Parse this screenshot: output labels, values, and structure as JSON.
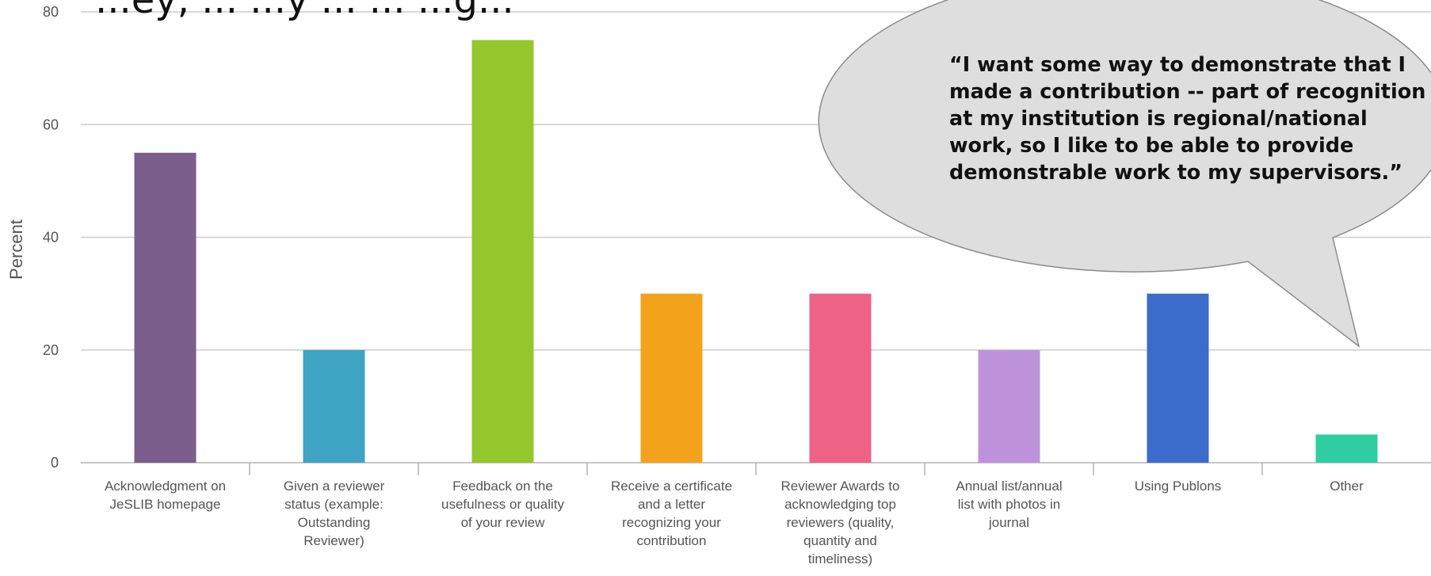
{
  "chart_data": {
    "type": "bar",
    "title": "...ey, ... ...y ... ... ...g...",
    "ylabel": "Percent",
    "xlabel": "",
    "ylim": [
      0,
      80
    ],
    "yticks": [
      0,
      20,
      40,
      60,
      80
    ],
    "grid": true,
    "categories": [
      [
        "Acknowledgment on",
        "JeSLIB homepage"
      ],
      [
        "Given a reviewer",
        "status (example:",
        "Outstanding",
        "Reviewer)"
      ],
      [
        "Feedback on the",
        "usefulness or quality",
        "of your review"
      ],
      [
        "Receive a certificate",
        "and a letter",
        "recognizing your",
        "contribution"
      ],
      [
        "Reviewer Awards to",
        "acknowledging top",
        "reviewers (quality,",
        "quantity and",
        "timeliness)"
      ],
      [
        "Annual list/annual",
        "list with photos in",
        "journal"
      ],
      [
        "Using Publons"
      ],
      [
        "Other"
      ]
    ],
    "values": [
      55,
      20,
      75,
      30,
      30,
      20,
      30,
      5
    ],
    "colors": [
      "#7b5e8b",
      "#3fa3c4",
      "#94c72b",
      "#f2a31b",
      "#ee6285",
      "#be92db",
      "#3d6bcc",
      "#2ecea0"
    ]
  },
  "quote": {
    "lines": [
      "“I want some way to demonstrate that I",
      "made a contribution -- part of recognition",
      "at my institution is regional/national",
      "work, so I like to be able to provide",
      "demonstrable work to my supervisors.”"
    ],
    "fill": "#dedede",
    "stroke": "#8c8c8c"
  }
}
